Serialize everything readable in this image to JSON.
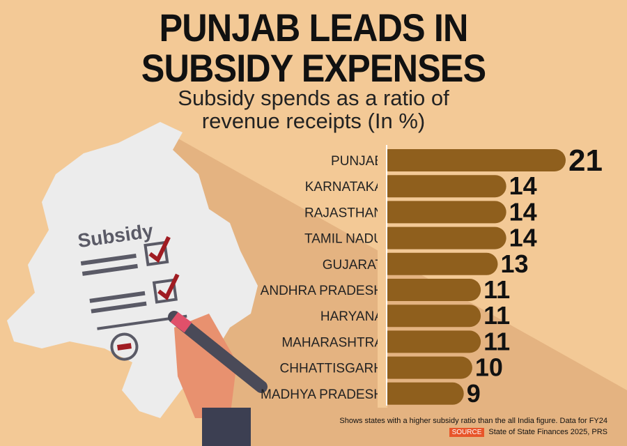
{
  "title_line1": "PUNJAB LEADS IN",
  "title_line2": "SUBSIDY EXPENSES",
  "subtitle_line1": "Subsidy spends as a ratio of",
  "subtitle_line2": "revenue receipts (In %)",
  "illustration": {
    "paper_label": "Subsidy"
  },
  "chart_data": {
    "type": "bar",
    "orientation": "horizontal",
    "title": "Subsidy spends as a ratio of revenue receipts (In %)",
    "categories": [
      "PUNJAB",
      "KARNATAKA",
      "RAJASTHAN",
      "TAMIL NADU",
      "GUJARAT",
      "ANDHRA PRADESH",
      "HARYANA",
      "MAHARASHTRA",
      "CHHATTISGARH",
      "MADHYA PRADESH"
    ],
    "values": [
      21,
      14,
      14,
      14,
      13,
      11,
      11,
      11,
      10,
      9
    ],
    "bar_color": "#8f5f1d",
    "xlim": [
      0,
      21
    ]
  },
  "footer": {
    "note": "Shows states with a higher subsidy ratio than the all India figure. Data for FY24",
    "source_label": "SOURCE",
    "source_text": "State of State Finances 2025, PRS"
  }
}
